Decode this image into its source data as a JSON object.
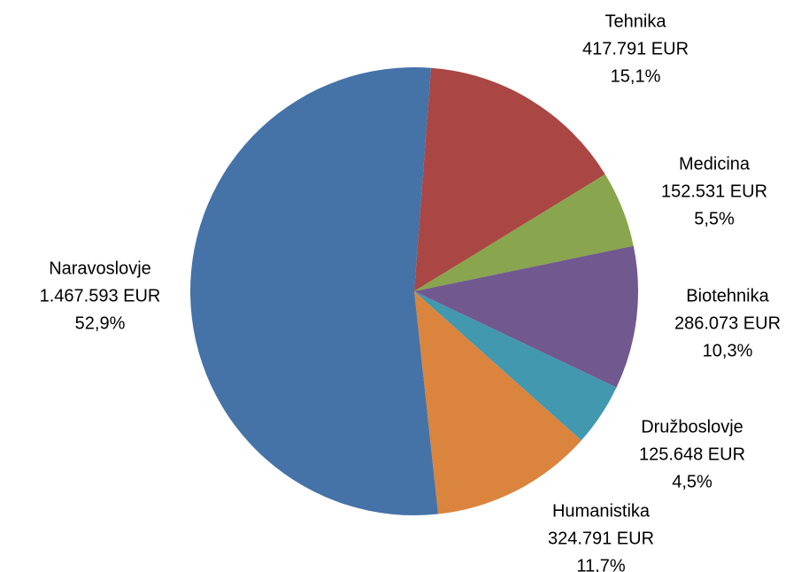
{
  "chart_data": {
    "type": "pie",
    "categories": [
      "Tehnika",
      "Medicina",
      "Biotehnika",
      "Družboslovje",
      "Humanistika",
      "Naravoslovje"
    ],
    "values": [
      417791,
      152531,
      286073,
      125648,
      324791,
      1467593
    ],
    "value_labels": [
      "417.791 EUR",
      "152.531 EUR",
      "286.073 EUR",
      "125.648 EUR",
      "324.791 EUR",
      "1.467.593 EUR"
    ],
    "percent_labels": [
      "15,1%",
      "5,5%",
      "10,3%",
      "4,5%",
      "11,7%",
      "52,9%"
    ],
    "colors": [
      "#aa4643",
      "#89a54e",
      "#71588f",
      "#4198af",
      "#db843d",
      "#4572a7"
    ]
  }
}
